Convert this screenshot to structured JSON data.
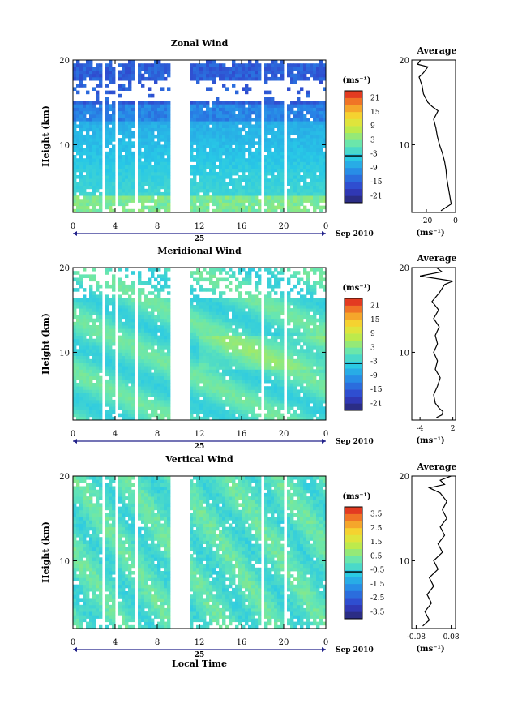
{
  "chart_data": [
    {
      "type": "heatmap",
      "title": "Zonal Wind",
      "ylabel": "Height (km)",
      "yticks": [
        "20",
        "10"
      ],
      "ylim": [
        2,
        20
      ],
      "xticks": [
        "0",
        "4",
        "8",
        "12",
        "16",
        "20",
        "0"
      ],
      "xlim": [
        0,
        24
      ],
      "date_label": "25",
      "date_note": "Sep 2010",
      "colorbar": {
        "unit": "(ms⁻¹)",
        "ticks": [
          "21",
          "15",
          "9",
          "3",
          "-3",
          "-9",
          "-15",
          "-21"
        ],
        "range": [
          -24,
          24
        ]
      },
      "average": {
        "title": "Average",
        "xlabel": "(ms⁻¹)",
        "xticks": [
          "-20",
          "0"
        ],
        "xlim": [
          -30,
          0
        ],
        "yticks": [
          "20",
          "10"
        ],
        "points": [
          [
            -10,
            2.2
          ],
          [
            -3,
            3
          ],
          [
            -4,
            4
          ],
          [
            -5,
            5
          ],
          [
            -6,
            6
          ],
          [
            -6.5,
            7
          ],
          [
            -7.5,
            8
          ],
          [
            -9,
            9
          ],
          [
            -11,
            10
          ],
          [
            -12.5,
            11
          ],
          [
            -13.5,
            12
          ],
          [
            -15,
            13
          ],
          [
            -12,
            14
          ],
          [
            -16,
            14.5
          ],
          [
            -19,
            15
          ],
          [
            -22,
            16
          ],
          [
            -23,
            17
          ],
          [
            -25,
            18
          ],
          [
            -22,
            18.5
          ],
          [
            -19,
            19.2
          ],
          [
            -26,
            19.5
          ],
          [
            -24,
            20
          ]
        ]
      }
    },
    {
      "type": "heatmap",
      "title": "Meridional Wind",
      "ylabel": "Height (km)",
      "yticks": [
        "20",
        "10"
      ],
      "ylim": [
        2,
        20
      ],
      "xticks": [
        "0",
        "4",
        "8",
        "12",
        "16",
        "20",
        "0"
      ],
      "xlim": [
        0,
        24
      ],
      "date_label": "25",
      "date_note": "Sep 2010",
      "colorbar": {
        "unit": "(ms⁻¹)",
        "ticks": [
          "21",
          "15",
          "9",
          "3",
          "-3",
          "-9",
          "-15",
          "-21"
        ],
        "range": [
          -24,
          24
        ]
      },
      "average": {
        "title": "Average",
        "xlabel": "(ms⁻¹)",
        "xticks": [
          "-4",
          "2"
        ],
        "xlim": [
          -5.5,
          2.5
        ],
        "yticks": [
          "20",
          "10"
        ],
        "points": [
          [
            -1,
            2.3
          ],
          [
            0,
            2.6
          ],
          [
            0.2,
            3
          ],
          [
            -0.5,
            3.4
          ],
          [
            -1.2,
            4
          ],
          [
            -1.5,
            5
          ],
          [
            -0.8,
            6
          ],
          [
            -0.3,
            7
          ],
          [
            -1.2,
            8
          ],
          [
            -0.8,
            9
          ],
          [
            -1.5,
            10
          ],
          [
            -0.8,
            11
          ],
          [
            -1.2,
            12
          ],
          [
            -0.5,
            13
          ],
          [
            -1.5,
            14
          ],
          [
            -0.6,
            15
          ],
          [
            -1.8,
            16
          ],
          [
            -0.5,
            17
          ],
          [
            0.5,
            18
          ],
          [
            2,
            18.4
          ],
          [
            -4,
            19
          ],
          [
            0,
            19.5
          ],
          [
            -1,
            20
          ]
        ]
      }
    },
    {
      "type": "heatmap",
      "title": "Vertical Wind",
      "ylabel": "Height (km)",
      "yticks": [
        "20",
        "10"
      ],
      "ylim": [
        2,
        20
      ],
      "xticks": [
        "0",
        "4",
        "8",
        "12",
        "16",
        "20",
        "0"
      ],
      "xlim": [
        0,
        24
      ],
      "date_label": "25",
      "date_note": "Sep 2010",
      "xlabel": "Local Time",
      "colorbar": {
        "unit": "(ms⁻¹)",
        "ticks": [
          "3.5",
          "2.5",
          "1.5",
          "0.5",
          "-0.5",
          "-1.5",
          "-2.5",
          "-3.5"
        ],
        "range": [
          -4,
          4
        ]
      },
      "average": {
        "title": "Average",
        "xlabel": "(ms⁻¹)",
        "xticks": [
          "-0.08",
          "0.08"
        ],
        "xlim": [
          -0.1,
          0.1
        ],
        "yticks": [
          "20",
          "10"
        ],
        "points": [
          [
            -0.05,
            2.3
          ],
          [
            -0.02,
            3
          ],
          [
            -0.04,
            4
          ],
          [
            -0.01,
            5
          ],
          [
            -0.03,
            6
          ],
          [
            0.0,
            7
          ],
          [
            -0.02,
            8
          ],
          [
            0.02,
            9
          ],
          [
            0.0,
            10
          ],
          [
            0.04,
            11
          ],
          [
            0.02,
            12
          ],
          [
            0.05,
            13
          ],
          [
            0.03,
            14
          ],
          [
            0.06,
            15
          ],
          [
            0.04,
            16
          ],
          [
            0.06,
            17
          ],
          [
            0.03,
            18
          ],
          [
            -0.02,
            18.6
          ],
          [
            0.05,
            19
          ],
          [
            0.03,
            19.5
          ],
          [
            0.08,
            20
          ]
        ]
      }
    }
  ]
}
